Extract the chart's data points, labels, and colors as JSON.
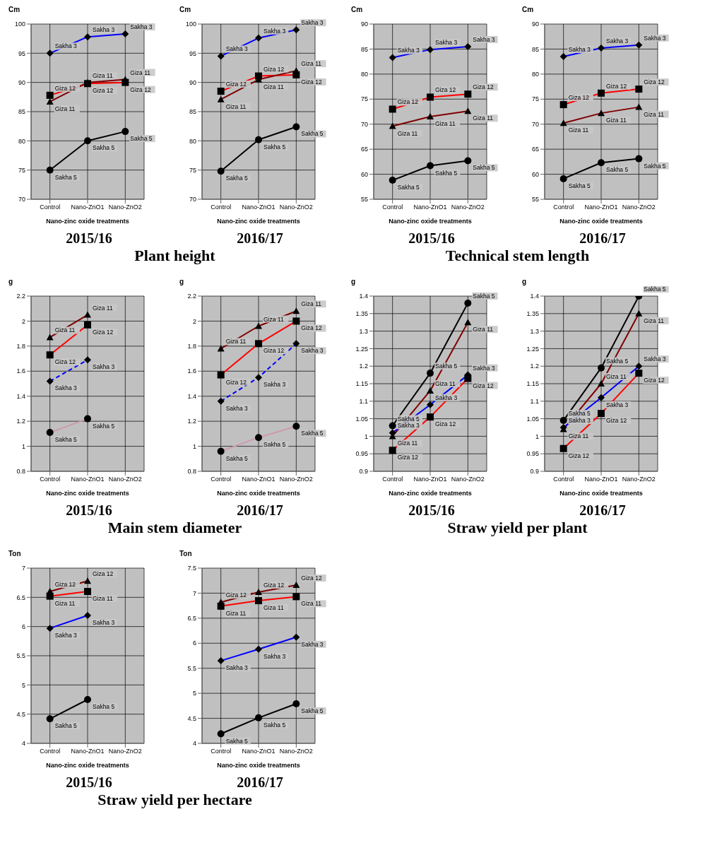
{
  "chart_data": [
    {
      "type": "line",
      "title": "2015/16",
      "annotations": [
        "Plant height"
      ],
      "ylabel": "Cm",
      "xlabel": "Nano-zinc oxide treatments",
      "categories": [
        "Control",
        "Nano-ZnO1",
        "Nano-ZnO2"
      ],
      "ylim": [
        70,
        100
      ],
      "yticks": [
        70,
        75,
        80,
        85,
        90,
        95,
        100
      ],
      "grid": true,
      "series": [
        {
          "name": "Sakha 3",
          "color": "#0000ff",
          "marker": "diamond",
          "values": [
            95,
            97.8,
            98.3
          ]
        },
        {
          "name": "Giza 12",
          "color": "#ff0000",
          "marker": "square",
          "values": [
            87.8,
            89.8,
            90.0
          ]
        },
        {
          "name": "Giza 11",
          "color": "#800000",
          "marker": "triangle",
          "values": [
            86.7,
            90,
            90.5
          ]
        },
        {
          "name": "Sakha 5",
          "color": "#000000",
          "marker": "circle",
          "values": [
            75,
            80,
            81.6
          ]
        }
      ]
    },
    {
      "type": "line",
      "title": "2016/17",
      "ylabel": "Cm",
      "xlabel": "Nano-zinc oxide treatments",
      "categories": [
        "Control",
        "Nano-ZnO1",
        "Nano-ZnO2"
      ],
      "ylim": [
        70,
        100
      ],
      "yticks": [
        70,
        75,
        80,
        85,
        90,
        95,
        100
      ],
      "grid": true,
      "series": [
        {
          "name": "Sakha 3",
          "color": "#0000ff",
          "marker": "diamond",
          "values": [
            94.5,
            97.6,
            99.0
          ]
        },
        {
          "name": "Giza 12",
          "color": "#ff0000",
          "marker": "square",
          "values": [
            88.5,
            91.1,
            91.3
          ]
        },
        {
          "name": "Giza 11",
          "color": "#800000",
          "marker": "triangle",
          "values": [
            87.1,
            90.5,
            92.0
          ]
        },
        {
          "name": "Sakha 5",
          "color": "#000000",
          "marker": "circle",
          "values": [
            74.8,
            80.2,
            82.4
          ]
        }
      ]
    },
    {
      "type": "line",
      "title": "2015/16",
      "annotations": [
        "Technical stem length"
      ],
      "ylabel": "Cm",
      "xlabel": "Nano-zinc oxide treatments",
      "categories": [
        "Control",
        "Nano-ZnO1",
        "Nano-ZnO2"
      ],
      "ylim": [
        55,
        90
      ],
      "yticks": [
        55,
        60,
        65,
        70,
        75,
        80,
        85,
        90
      ],
      "grid": true,
      "series": [
        {
          "name": "Sakha 3",
          "color": "#0000ff",
          "marker": "diamond",
          "values": [
            83.3,
            84.9,
            85.5
          ]
        },
        {
          "name": "Giza 12",
          "color": "#ff0000",
          "marker": "square",
          "values": [
            73.0,
            75.4,
            76.0
          ]
        },
        {
          "name": "Giza 11",
          "color": "#800000",
          "marker": "triangle",
          "values": [
            69.6,
            71.5,
            72.6
          ]
        },
        {
          "name": "Sakha 5",
          "color": "#000000",
          "marker": "circle",
          "values": [
            58.8,
            61.7,
            62.7
          ]
        }
      ]
    },
    {
      "type": "line",
      "title": "2016/17",
      "ylabel": "Cm",
      "xlabel": "Nano-zinc oxide treatments",
      "categories": [
        "Control",
        "Nano-ZnO1",
        "Nano-ZnO2"
      ],
      "ylim": [
        55,
        90
      ],
      "yticks": [
        55,
        60,
        65,
        70,
        75,
        80,
        85,
        90
      ],
      "grid": true,
      "series": [
        {
          "name": "Sakha 3",
          "color": "#0000ff",
          "marker": "diamond",
          "values": [
            83.5,
            85.2,
            85.8
          ]
        },
        {
          "name": "Giza 12",
          "color": "#ff0000",
          "marker": "square",
          "values": [
            73.9,
            76.2,
            77.0
          ]
        },
        {
          "name": "Giza 11",
          "color": "#800000",
          "marker": "triangle",
          "values": [
            70.2,
            72.2,
            73.4
          ]
        },
        {
          "name": "Sakha 5",
          "color": "#000000",
          "marker": "circle",
          "values": [
            59.1,
            62.3,
            63.1
          ]
        }
      ]
    },
    {
      "type": "line",
      "title": "2015/16",
      "annotations": [
        "Main stem diameter"
      ],
      "ylabel": "g",
      "xlabel": "Nano-zinc oxide treatments",
      "categories": [
        "Control",
        "Nano-ZnO1",
        "Nano-ZnO2"
      ],
      "ylim": [
        0.8,
        2.2
      ],
      "yticks": [
        0.8,
        1,
        1.2,
        1.4,
        1.6,
        1.8,
        2,
        2.2
      ],
      "grid": true,
      "series": [
        {
          "name": "Giza 11",
          "color": "#800000",
          "marker": "triangle",
          "values": [
            1.87,
            2.05,
            null
          ]
        },
        {
          "name": "Giza 12",
          "color": "#ff0000",
          "marker": "square",
          "values": [
            1.73,
            1.97,
            null
          ]
        },
        {
          "name": "Sakha 3",
          "color": "#0000ff",
          "marker": "diamond",
          "line_style": "dashed",
          "values": [
            1.52,
            1.69,
            null
          ]
        },
        {
          "name": "Sakha 5",
          "color": "#cc99b0",
          "marker": "circle",
          "values": [
            1.11,
            1.22,
            null
          ]
        }
      ]
    },
    {
      "type": "line",
      "title": "2016/17",
      "ylabel": "g",
      "xlabel": "Nano-zinc oxide treatments",
      "categories": [
        "Control",
        "Nano-ZnO1",
        "Nano-ZnO2"
      ],
      "ylim": [
        0.8,
        2.2
      ],
      "yticks": [
        0.8,
        1,
        1.2,
        1.4,
        1.6,
        1.8,
        2,
        2.2
      ],
      "grid": true,
      "series": [
        {
          "name": "Giza 11",
          "color": "#800000",
          "marker": "triangle",
          "values": [
            1.78,
            1.96,
            2.08
          ]
        },
        {
          "name": "Giza 12",
          "color": "#ff0000",
          "marker": "square",
          "values": [
            1.57,
            1.82,
            2.0
          ]
        },
        {
          "name": "Sakha 3",
          "color": "#0000ff",
          "marker": "diamond",
          "line_style": "dashed",
          "values": [
            1.36,
            1.55,
            1.82
          ]
        },
        {
          "name": "Sakha 5",
          "color": "#cc99b0",
          "marker": "circle",
          "values": [
            0.96,
            1.07,
            1.16
          ]
        }
      ]
    },
    {
      "type": "line",
      "title": "2015/16",
      "annotations": [
        "Straw yield per plant"
      ],
      "ylabel": "g",
      "xlabel": "Nano-zinc oxide treatments",
      "categories": [
        "Control",
        "Nano-ZnO1",
        "Nano-ZnO2"
      ],
      "ylim": [
        0.9,
        1.4
      ],
      "yticks": [
        0.9,
        0.95,
        1,
        1.05,
        1.1,
        1.15,
        1.2,
        1.25,
        1.3,
        1.35,
        1.4
      ],
      "grid": true,
      "series": [
        {
          "name": "Sakha 5",
          "color": "#000000",
          "marker": "circle",
          "values": [
            1.03,
            1.18,
            1.38
          ]
        },
        {
          "name": "Giza 11",
          "color": "#800000",
          "marker": "triangle",
          "values": [
            1.0,
            1.13,
            1.325
          ]
        },
        {
          "name": "Sakha 3",
          "color": "#0000ff",
          "marker": "diamond",
          "values": [
            1.01,
            1.09,
            1.175
          ]
        },
        {
          "name": "Giza 12",
          "color": "#ff0000",
          "marker": "square",
          "values": [
            0.96,
            1.055,
            1.165
          ]
        }
      ]
    },
    {
      "type": "line",
      "title": "2016/17",
      "ylabel": "g",
      "xlabel": "Nano-zinc oxide treatments",
      "categories": [
        "Control",
        "Nano-ZnO1",
        "Nano-ZnO2"
      ],
      "ylim": [
        0.9,
        1.4
      ],
      "yticks": [
        0.9,
        0.95,
        1,
        1.05,
        1.1,
        1.15,
        1.2,
        1.25,
        1.3,
        1.35,
        1.4
      ],
      "grid": true,
      "series": [
        {
          "name": "Sakha 5",
          "color": "#000000",
          "marker": "circle",
          "values": [
            1.045,
            1.195,
            1.4
          ]
        },
        {
          "name": "Giza 11",
          "color": "#800000",
          "marker": "triangle",
          "values": [
            1.02,
            1.15,
            1.35
          ]
        },
        {
          "name": "Sakha 3",
          "color": "#0000ff",
          "marker": "diamond",
          "values": [
            1.025,
            1.11,
            1.2
          ]
        },
        {
          "name": "Giza 12",
          "color": "#ff0000",
          "marker": "square",
          "values": [
            0.965,
            1.065,
            1.18
          ]
        }
      ]
    },
    {
      "type": "line",
      "title": "2015/16",
      "annotations": [
        "Straw yield per hectare"
      ],
      "ylabel": "Ton",
      "xlabel": "Nano-zinc oxide treatments",
      "categories": [
        "Control",
        "Nano-ZnO1",
        "Nano-ZnO2"
      ],
      "ylim": [
        4,
        7
      ],
      "yticks": [
        4,
        4.5,
        5,
        5.5,
        6,
        6.5,
        7
      ],
      "grid": true,
      "series": [
        {
          "name": "Giza 12",
          "color": "#800000",
          "marker": "triangle",
          "values": [
            6.6,
            6.78,
            null
          ]
        },
        {
          "name": "Giza 11",
          "color": "#ff0000",
          "marker": "square",
          "values": [
            6.52,
            6.6,
            null
          ]
        },
        {
          "name": "Sakha 3",
          "color": "#0000ff",
          "marker": "diamond",
          "values": [
            5.97,
            6.19,
            null
          ]
        },
        {
          "name": "Sakha 5",
          "color": "#000000",
          "marker": "circle",
          "values": [
            4.42,
            4.75,
            null
          ]
        }
      ]
    },
    {
      "type": "line",
      "title": "2016/17",
      "ylabel": "Ton",
      "xlabel": "Nano-zinc oxide treatments",
      "categories": [
        "Control",
        "Nano-ZnO1",
        "Nano-ZnO2"
      ],
      "ylim": [
        4,
        7.5
      ],
      "yticks": [
        4,
        4.5,
        5,
        5.5,
        6,
        6.5,
        7,
        7.5
      ],
      "grid": true,
      "series": [
        {
          "name": "Giza 12",
          "color": "#800000",
          "marker": "triangle",
          "values": [
            6.82,
            7.02,
            7.16
          ]
        },
        {
          "name": "Giza 11",
          "color": "#ff0000",
          "marker": "square",
          "values": [
            6.74,
            6.85,
            6.93
          ]
        },
        {
          "name": "Sakha 3",
          "color": "#0000ff",
          "marker": "diamond",
          "values": [
            5.65,
            5.88,
            6.12
          ]
        },
        {
          "name": "Sakha 5",
          "color": "#000000",
          "marker": "circle",
          "values": [
            4.19,
            4.51,
            4.79
          ]
        }
      ]
    }
  ]
}
